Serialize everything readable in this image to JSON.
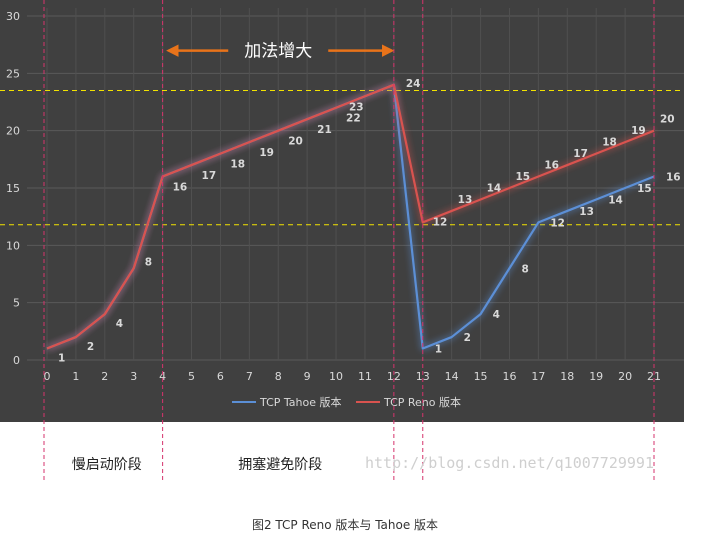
{
  "chart_data": {
    "type": "line",
    "x": [
      0,
      1,
      2,
      3,
      4,
      5,
      6,
      7,
      8,
      9,
      10,
      11,
      12,
      13,
      14,
      15,
      16,
      17,
      18,
      19,
      20,
      21
    ],
    "ylim": [
      0,
      30
    ],
    "yticks": [
      0,
      5,
      10,
      15,
      20,
      25,
      30
    ],
    "grid": true,
    "legend_position": "bottom",
    "colors": {
      "background": "#404040",
      "tahoe": "#5b8fd6",
      "reno": "#d9534f",
      "threshold": "#f2e200",
      "phase_divider": "#d6336c",
      "arrow": "#e8731a"
    },
    "series": [
      {
        "name": "TCP Tahoe 版本",
        "values": [
          1,
          2,
          4,
          8,
          16,
          17,
          18,
          19,
          20,
          21,
          22,
          23,
          24,
          1,
          2,
          4,
          8,
          12,
          13,
          14,
          15,
          16
        ],
        "labels": [
          "1",
          "2",
          "4",
          "8",
          "16",
          "17",
          "18",
          "19",
          "20",
          "21",
          "22",
          "23",
          "24",
          "1",
          "2",
          "4",
          "8",
          "12",
          "13",
          "14",
          "15",
          "16"
        ]
      },
      {
        "name": "TCP Reno 版本",
        "values": [
          1,
          2,
          4,
          8,
          16,
          17,
          18,
          19,
          20,
          21,
          22,
          23,
          24,
          12,
          13,
          14,
          15,
          16,
          17,
          18,
          19,
          20
        ],
        "labels": [
          "1",
          "2",
          "4",
          "8",
          "16",
          "17",
          "18",
          "19",
          "20",
          "21",
          "22",
          "23",
          "24",
          "12",
          "13",
          "14",
          "15",
          "16",
          "17",
          "18",
          "19",
          "20"
        ]
      }
    ],
    "thresholds": [
      23.5,
      11.8
    ],
    "phase_dividers_x": [
      0,
      4,
      12,
      13,
      21
    ],
    "annotation": {
      "text": "加法增大",
      "from_x": 4,
      "to_x": 12,
      "y": 27.5
    },
    "phases": [
      {
        "label": "慢启动阶段",
        "center_x": 2
      },
      {
        "label": "拥塞避免阶段",
        "center_x": 8
      }
    ]
  },
  "watermark": "http://blog.csdn.net/q1007729991",
  "caption": "图2 TCP Reno 版本与 Tahoe 版本"
}
